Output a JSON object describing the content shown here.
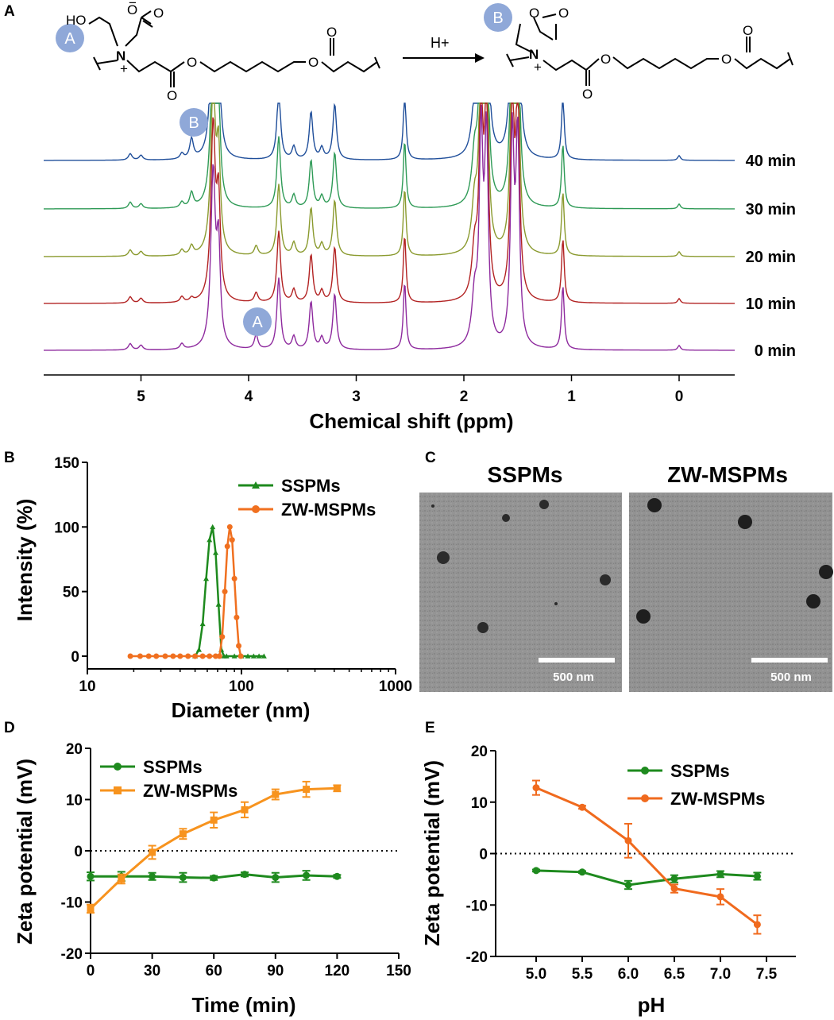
{
  "panels": {
    "A": {
      "letter": "A",
      "badge_a": "A",
      "badge_b": "B",
      "reagent": "H+",
      "xlabel": "Chemical shift (ppm)",
      "ticks": [
        "5",
        "4",
        "3",
        "2",
        "1",
        "0"
      ],
      "traces": [
        {
          "label": "40 min",
          "color": "#1f4e9a"
        },
        {
          "label": "30 min",
          "color": "#2e9a56"
        },
        {
          "label": "20 min",
          "color": "#8a9a2e"
        },
        {
          "label": "10 min",
          "color": "#b22222"
        },
        {
          "label": "0 min",
          "color": "#8e2a9e"
        }
      ]
    },
    "B": {
      "letter": "B",
      "xlabel": "Diameter (nm)",
      "ylabel": "Intensity (%)",
      "xticks": [
        "10",
        "100",
        "1000"
      ],
      "yticks": [
        "0",
        "50",
        "100",
        "150"
      ]
    },
    "C": {
      "letter": "C",
      "left_title": "SSPMs",
      "right_title": "ZW-MSPMs",
      "scale_left": "500 nm",
      "scale_right": "500 nm"
    },
    "D": {
      "letter": "D",
      "xlabel": "Time (min)",
      "ylabel": "Zeta potential (mV)",
      "xticks": [
        "0",
        "30",
        "60",
        "90",
        "120",
        "150"
      ],
      "yticks": [
        "-20",
        "-10",
        "0",
        "10",
        "20"
      ]
    },
    "E": {
      "letter": "E",
      "xlabel": "pH",
      "ylabel": "Zeta potential (mV)",
      "xticks": [
        "5.0",
        "5.5",
        "6.0",
        "6.5",
        "7.0",
        "7.5"
      ],
      "yticks": [
        "-20",
        "-10",
        "0",
        "10",
        "20"
      ]
    }
  },
  "chart_data": [
    {
      "panel": "A",
      "type": "line",
      "xlabel": "Chemical shift (ppm)",
      "xlim": [
        -0.5,
        6.0
      ],
      "x_reversed": true,
      "series": [
        {
          "name": "40 min",
          "color": "#1f4e9a",
          "peaks_ppm": [
            5.1,
            5.0,
            4.6,
            4.52,
            4.33,
            3.72,
            3.42,
            3.2,
            2.55,
            1.85,
            1.8,
            1.55,
            1.48,
            1.08,
            0.0
          ]
        },
        {
          "name": "30 min",
          "color": "#2e9a56",
          "peaks_ppm": [
            5.1,
            5.0,
            4.6,
            4.52,
            4.33,
            3.72,
            3.42,
            3.2,
            2.55,
            1.85,
            1.8,
            1.55,
            1.48,
            1.08,
            0.0
          ]
        },
        {
          "name": "20 min",
          "color": "#8a9a2e",
          "peaks_ppm": [
            5.1,
            5.0,
            4.6,
            4.52,
            4.33,
            3.93,
            3.72,
            3.42,
            3.2,
            2.55,
            1.85,
            1.8,
            1.55,
            1.48,
            1.08,
            0.0
          ]
        },
        {
          "name": "10 min",
          "color": "#b22222",
          "peaks_ppm": [
            5.1,
            5.0,
            4.6,
            4.52,
            4.33,
            3.93,
            3.72,
            3.42,
            3.2,
            2.55,
            1.85,
            1.8,
            1.55,
            1.48,
            1.08,
            0.0
          ]
        },
        {
          "name": "0 min",
          "color": "#8e2a9e",
          "peaks_ppm": [
            5.1,
            5.0,
            4.6,
            4.33,
            3.93,
            3.72,
            3.42,
            3.2,
            2.55,
            1.85,
            1.8,
            1.55,
            1.48,
            1.08,
            0.0
          ]
        }
      ]
    },
    {
      "panel": "B",
      "type": "line",
      "xlabel": "Diameter (nm)",
      "ylabel": "Intensity (%)",
      "x_scale": "log",
      "xlim": [
        10,
        1000
      ],
      "ylim": [
        0,
        150
      ],
      "legend": "top-right",
      "series": [
        {
          "name": "SSPMs",
          "color": "#1e8a1e",
          "marker": "triangle",
          "x": [
            50,
            53,
            56,
            59,
            62,
            65,
            68,
            71,
            74,
            77,
            80,
            90,
            100,
            110,
            120,
            130,
            140
          ],
          "y": [
            0,
            5,
            25,
            60,
            90,
            100,
            80,
            40,
            5,
            0,
            0,
            0,
            0,
            0,
            0,
            0,
            0
          ]
        },
        {
          "name": "ZW-MSPMs",
          "color": "#f07020",
          "marker": "circle",
          "x": [
            19,
            22,
            25,
            28,
            32,
            36,
            40,
            45,
            50,
            56,
            62,
            68,
            72,
            75,
            78,
            81,
            84,
            87,
            90,
            93,
            96,
            99
          ],
          "y": [
            0,
            0,
            0,
            0,
            0,
            0,
            0,
            0,
            0,
            0,
            0,
            0,
            0,
            15,
            50,
            85,
            100,
            90,
            60,
            30,
            8,
            0
          ]
        }
      ]
    },
    {
      "panel": "D",
      "type": "line",
      "xlabel": "Time (min)",
      "ylabel": "Zeta potential (mV)",
      "xlim": [
        0,
        150
      ],
      "ylim": [
        -20,
        20
      ],
      "legend": "top-left",
      "series": [
        {
          "name": "SSPMs",
          "color": "#1e8a1e",
          "marker": "circle",
          "x": [
            0,
            15,
            30,
            45,
            60,
            75,
            90,
            105,
            120
          ],
          "y": [
            -5,
            -5,
            -5,
            -5.2,
            -5.3,
            -4.6,
            -5.2,
            -4.8,
            -5
          ],
          "err": [
            0.8,
            0.9,
            0.7,
            0.9,
            0.4,
            0.4,
            0.9,
            0.9,
            0.3
          ]
        },
        {
          "name": "ZW-MSPMs",
          "color": "#f7931e",
          "marker": "square",
          "x": [
            0,
            15,
            30,
            45,
            60,
            75,
            90,
            105,
            120
          ],
          "y": [
            -11.3,
            -5.5,
            -0.3,
            3.3,
            6,
            8,
            11,
            12,
            12.2
          ],
          "err": [
            0.8,
            0.9,
            1.3,
            1.0,
            1.5,
            1.5,
            1.0,
            1.5,
            0.6
          ]
        }
      ]
    },
    {
      "panel": "E",
      "type": "line",
      "xlabel": "pH",
      "ylabel": "Zeta potential (mV)",
      "xlim": [
        4.6,
        7.7
      ],
      "ylim": [
        -20,
        20
      ],
      "legend": "top-right",
      "series": [
        {
          "name": "SSPMs",
          "color": "#1e8a1e",
          "marker": "circle",
          "x": [
            5.0,
            5.5,
            6.0,
            6.5,
            7.0,
            7.4
          ],
          "y": [
            -3.3,
            -3.6,
            -6.1,
            -4.9,
            -4,
            -4.4
          ],
          "err": [
            0.2,
            0.2,
            0.8,
            0.7,
            0.6,
            0.7
          ]
        },
        {
          "name": "ZW-MSPMs",
          "color": "#f06a1e",
          "marker": "circle",
          "x": [
            5.0,
            5.5,
            6.0,
            6.5,
            7.0,
            7.4
          ],
          "y": [
            12.8,
            9,
            2.5,
            -6.8,
            -8.4,
            -13.8
          ],
          "err": [
            1.4,
            0.3,
            3.3,
            0.8,
            1.5,
            1.8
          ]
        }
      ]
    }
  ]
}
